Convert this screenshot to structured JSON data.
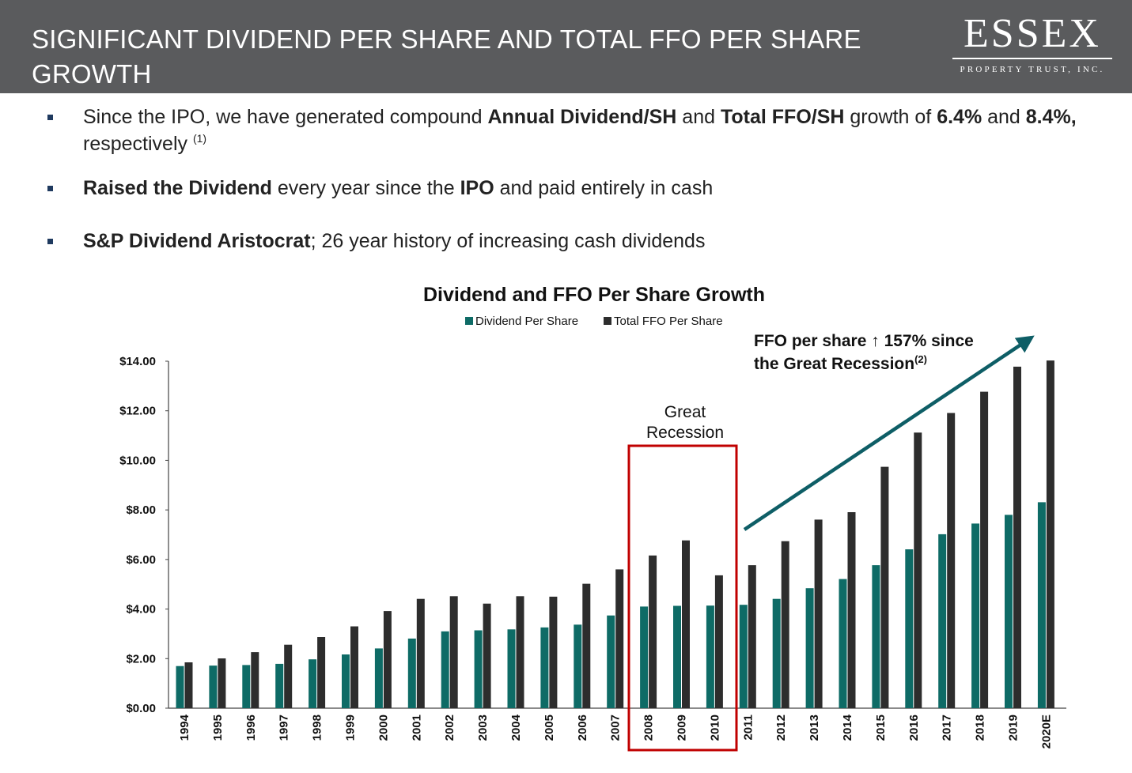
{
  "header": {
    "title": "SIGNIFICANT DIVIDEND PER SHARE AND TOTAL FFO PER SHARE GROWTH",
    "logo_word": "ESSEX",
    "logo_sub": "PROPERTY TRUST, INC."
  },
  "bullets": [
    {
      "segments": [
        {
          "text": "Since the IPO, we have generated compound ",
          "bold": false
        },
        {
          "text": "Annual Dividend/SH",
          "bold": true
        },
        {
          "text": " and ",
          "bold": false
        },
        {
          "text": "Total FFO/SH",
          "bold": true
        },
        {
          "text": " growth of ",
          "bold": false
        },
        {
          "text": "6.4%",
          "bold": true
        },
        {
          "text": " and ",
          "bold": false
        },
        {
          "text": "8.4%,",
          "bold": true
        },
        {
          "text": " respectively ",
          "bold": false
        }
      ],
      "footnote": "(1)"
    },
    {
      "segments": [
        {
          "text": "Raised the Dividend",
          "bold": true
        },
        {
          "text": " every year since the ",
          "bold": false
        },
        {
          "text": "IPO",
          "bold": true
        },
        {
          "text": " and paid entirely in cash",
          "bold": false
        }
      ],
      "footnote": ""
    },
    {
      "segments": [
        {
          "text": "S&P Dividend Aristocrat",
          "bold": true
        },
        {
          "text": "; 26 year history of increasing cash dividends",
          "bold": false
        }
      ],
      "footnote": ""
    }
  ],
  "colors": {
    "header_bg": "#5a5b5d",
    "dividend": "#0e6b66",
    "ffo": "#2d2d2d",
    "recession_box": "#c00000",
    "arrow": "#0e5e66",
    "bullet": "#1f3a5f"
  },
  "chart_data": {
    "type": "bar",
    "title": "Dividend and FFO Per Share Growth",
    "xlabel": "",
    "ylabel": "",
    "ylim": [
      0,
      14
    ],
    "yticks": [
      0,
      2,
      4,
      6,
      8,
      10,
      12,
      14
    ],
    "ytick_labels": [
      "$0.00",
      "$2.00",
      "$4.00",
      "$6.00",
      "$8.00",
      "$10.00",
      "$12.00",
      "$14.00"
    ],
    "legend_position": "top-center",
    "grid": false,
    "categories": [
      "1994",
      "1995",
      "1996",
      "1997",
      "1998",
      "1999",
      "2000",
      "2001",
      "2002",
      "2003",
      "2004",
      "2005",
      "2006",
      "2007",
      "2008",
      "2009",
      "2010",
      "2011",
      "2012",
      "2013",
      "2014",
      "2015",
      "2016",
      "2017",
      "2018",
      "2019",
      "2020E"
    ],
    "series": [
      {
        "name": "Dividend Per Share",
        "values": [
          1.7,
          1.72,
          1.74,
          1.79,
          1.97,
          2.17,
          2.41,
          2.81,
          3.1,
          3.14,
          3.18,
          3.26,
          3.37,
          3.74,
          4.1,
          4.13,
          4.14,
          4.17,
          4.41,
          4.84,
          5.21,
          5.77,
          6.41,
          7.02,
          7.45,
          7.8,
          8.31
        ]
      },
      {
        "name": "Total FFO Per Share",
        "values": [
          1.85,
          2.01,
          2.26,
          2.56,
          2.87,
          3.3,
          3.92,
          4.41,
          4.52,
          4.22,
          4.52,
          4.5,
          5.02,
          5.6,
          6.16,
          6.77,
          5.36,
          5.77,
          6.74,
          7.61,
          7.91,
          9.74,
          11.12,
          11.91,
          12.77,
          13.78,
          14.03
        ]
      }
    ],
    "annotations": {
      "recession_label_line1": "Great",
      "recession_label_line2": "Recession",
      "recession_years": [
        "2008",
        "2009",
        "2010"
      ],
      "ffo_note_line1_a": "FFO per share",
      "ffo_note_arrow": "↑",
      "ffo_note_line1_b": "157% since",
      "ffo_note_line2": "the Great Recession",
      "ffo_note_footnote": "(2)"
    }
  }
}
